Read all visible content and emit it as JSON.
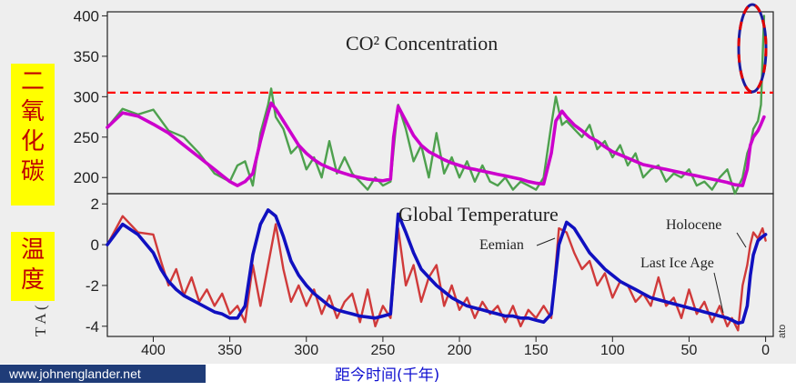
{
  "chart_data": [
    {
      "type": "line",
      "title": "CO² Concentration",
      "side_label": "二氧化碳",
      "ylim": [
        180,
        405
      ],
      "y_ticks": [
        200,
        250,
        300,
        350,
        400
      ],
      "xlim": [
        430,
        -5
      ],
      "reference_line": {
        "y": 305,
        "color": "#ff0000",
        "style": "dashed"
      },
      "series": [
        {
          "color": "#4ea04e",
          "x": [
            430,
            420,
            410,
            400,
            390,
            380,
            370,
            360,
            350,
            345,
            340,
            335,
            330,
            325,
            323,
            320,
            315,
            310,
            305,
            300,
            295,
            290,
            285,
            280,
            275,
            270,
            265,
            260,
            255,
            250,
            245,
            243,
            240,
            235,
            230,
            225,
            220,
            215,
            210,
            205,
            200,
            195,
            190,
            185,
            180,
            175,
            170,
            165,
            160,
            155,
            150,
            145,
            140,
            137,
            133,
            130,
            125,
            120,
            115,
            110,
            105,
            100,
            95,
            90,
            85,
            80,
            75,
            70,
            65,
            60,
            55,
            50,
            45,
            40,
            35,
            30,
            25,
            20,
            15,
            12,
            10,
            8,
            5,
            3,
            1
          ],
          "values": [
            262,
            285,
            278,
            284,
            258,
            250,
            230,
            205,
            195,
            215,
            220,
            190,
            255,
            290,
            310,
            275,
            260,
            230,
            240,
            210,
            225,
            200,
            245,
            205,
            225,
            205,
            195,
            185,
            200,
            190,
            195,
            235,
            290,
            260,
            220,
            240,
            200,
            255,
            205,
            225,
            200,
            220,
            195,
            215,
            195,
            190,
            200,
            185,
            195,
            190,
            185,
            200,
            265,
            300,
            265,
            270,
            260,
            250,
            265,
            235,
            245,
            225,
            240,
            215,
            230,
            200,
            210,
            215,
            195,
            205,
            200,
            210,
            190,
            195,
            185,
            200,
            210,
            180,
            200,
            230,
            240,
            260,
            270,
            290,
            400
          ]
        },
        {
          "color": "#cc00cc",
          "x": [
            430,
            420,
            410,
            400,
            390,
            380,
            370,
            360,
            350,
            345,
            340,
            335,
            330,
            325,
            323,
            320,
            315,
            310,
            305,
            300,
            295,
            290,
            285,
            280,
            275,
            270,
            265,
            260,
            255,
            250,
            245,
            243,
            240,
            235,
            230,
            225,
            220,
            215,
            210,
            205,
            200,
            195,
            190,
            185,
            180,
            175,
            170,
            165,
            160,
            155,
            150,
            145,
            140,
            137,
            133,
            130,
            125,
            120,
            115,
            110,
            105,
            100,
            95,
            90,
            85,
            80,
            75,
            70,
            65,
            60,
            55,
            50,
            45,
            40,
            35,
            30,
            25,
            20,
            15,
            12,
            10,
            8,
            5,
            3,
            1
          ],
          "values": [
            262,
            280,
            276,
            266,
            255,
            240,
            225,
            210,
            195,
            190,
            195,
            205,
            245,
            280,
            292,
            285,
            270,
            255,
            240,
            230,
            222,
            216,
            212,
            208,
            205,
            202,
            200,
            198,
            197,
            196,
            198,
            250,
            288,
            270,
            252,
            240,
            232,
            227,
            222,
            218,
            215,
            212,
            210,
            208,
            206,
            204,
            202,
            200,
            198,
            195,
            193,
            192,
            230,
            270,
            282,
            275,
            265,
            258,
            250,
            245,
            238,
            232,
            228,
            224,
            220,
            216,
            214,
            212,
            210,
            208,
            206,
            204,
            202,
            200,
            198,
            196,
            194,
            191,
            190,
            210,
            240,
            250,
            258,
            266,
            275
          ]
        }
      ]
    },
    {
      "type": "line",
      "title": "Global Temperature",
      "side_label": "温度",
      "ylabel": "T A  ( C)",
      "ylim": [
        -4.5,
        2.5
      ],
      "y_ticks": [
        2,
        0,
        -2,
        -4
      ],
      "xlim": [
        430,
        -5
      ],
      "x_ticks": [
        400,
        350,
        300,
        250,
        200,
        150,
        100,
        50,
        0
      ],
      "annotations": [
        "Eemian",
        "Last Ice Age",
        "Holocene"
      ],
      "series": [
        {
          "color": "#d03a3a",
          "x": [
            430,
            420,
            410,
            400,
            395,
            390,
            385,
            380,
            375,
            370,
            365,
            360,
            355,
            350,
            345,
            340,
            335,
            330,
            325,
            320,
            315,
            310,
            305,
            300,
            295,
            290,
            285,
            280,
            275,
            270,
            265,
            260,
            255,
            250,
            245,
            240,
            235,
            230,
            225,
            220,
            215,
            210,
            205,
            200,
            195,
            190,
            185,
            180,
            175,
            170,
            165,
            160,
            155,
            150,
            145,
            140,
            135,
            130,
            125,
            120,
            115,
            110,
            105,
            100,
            95,
            90,
            85,
            80,
            75,
            70,
            65,
            60,
            55,
            50,
            45,
            40,
            35,
            30,
            25,
            22,
            18,
            15,
            12,
            10,
            8,
            5,
            2,
            0
          ],
          "values": [
            0.0,
            1.4,
            0.6,
            0.5,
            -0.8,
            -2.0,
            -1.2,
            -2.5,
            -1.6,
            -2.8,
            -2.2,
            -3.0,
            -2.4,
            -3.4,
            -3.0,
            -3.8,
            -1.0,
            -3.0,
            -1.0,
            1.0,
            -1.2,
            -2.8,
            -2.0,
            -3.0,
            -2.2,
            -3.4,
            -2.5,
            -3.6,
            -2.8,
            -2.4,
            -3.8,
            -2.2,
            -4.0,
            -3.0,
            -3.6,
            0.8,
            -2.0,
            -1.0,
            -2.8,
            -1.6,
            -1.0,
            -3.0,
            -2.0,
            -3.2,
            -2.6,
            -3.6,
            -2.8,
            -3.4,
            -3.0,
            -3.8,
            -3.0,
            -4.0,
            -3.2,
            -3.6,
            -3.0,
            -3.6,
            0.8,
            0.6,
            -0.4,
            -1.2,
            -0.8,
            -2.0,
            -1.4,
            -2.6,
            -1.8,
            -2.0,
            -2.8,
            -2.4,
            -3.0,
            -1.6,
            -3.0,
            -2.6,
            -3.6,
            -2.2,
            -3.4,
            -2.8,
            -3.8,
            -3.0,
            -4.0,
            -3.6,
            -4.2,
            -2.0,
            -1.0,
            0.0,
            0.6,
            0.3,
            0.8,
            0.2
          ]
        },
        {
          "color": "#1010c0",
          "x": [
            430,
            420,
            410,
            400,
            395,
            390,
            385,
            380,
            375,
            370,
            365,
            360,
            355,
            350,
            345,
            340,
            335,
            330,
            325,
            320,
            315,
            310,
            305,
            300,
            295,
            290,
            285,
            280,
            275,
            270,
            265,
            260,
            255,
            250,
            245,
            240,
            235,
            230,
            225,
            220,
            215,
            210,
            205,
            200,
            195,
            190,
            185,
            180,
            175,
            170,
            165,
            160,
            155,
            150,
            145,
            140,
            135,
            130,
            125,
            120,
            115,
            110,
            105,
            100,
            95,
            90,
            85,
            80,
            75,
            70,
            65,
            60,
            55,
            50,
            45,
            40,
            35,
            30,
            25,
            22,
            18,
            15,
            12,
            10,
            8,
            5,
            2,
            0
          ],
          "values": [
            0.0,
            1.0,
            0.5,
            -0.4,
            -1.2,
            -1.8,
            -2.2,
            -2.5,
            -2.7,
            -2.9,
            -3.1,
            -3.3,
            -3.4,
            -3.6,
            -3.6,
            -3.0,
            -0.5,
            1.0,
            1.7,
            1.4,
            0.4,
            -0.8,
            -1.5,
            -2.0,
            -2.4,
            -2.7,
            -3.0,
            -3.2,
            -3.3,
            -3.4,
            -3.5,
            -3.55,
            -3.6,
            -3.5,
            -3.4,
            1.5,
            0.6,
            -0.4,
            -1.2,
            -1.6,
            -2.0,
            -2.3,
            -2.6,
            -2.8,
            -3.0,
            -3.1,
            -3.2,
            -3.3,
            -3.4,
            -3.5,
            -3.5,
            -3.6,
            -3.6,
            -3.7,
            -3.8,
            -3.4,
            0.0,
            1.1,
            0.8,
            0.2,
            -0.4,
            -0.8,
            -1.2,
            -1.5,
            -1.8,
            -2.0,
            -2.2,
            -2.4,
            -2.6,
            -2.7,
            -2.8,
            -2.9,
            -3.0,
            -3.1,
            -3.2,
            -3.3,
            -3.4,
            -3.5,
            -3.6,
            -3.7,
            -3.85,
            -3.8,
            -3.0,
            -1.5,
            -0.5,
            0.2,
            0.4,
            0.5
          ]
        }
      ]
    }
  ],
  "footer": {
    "watermark": "www.johnenglander.net",
    "x_axis_title": "距今时间(千年)",
    "corner_label": "ato"
  }
}
